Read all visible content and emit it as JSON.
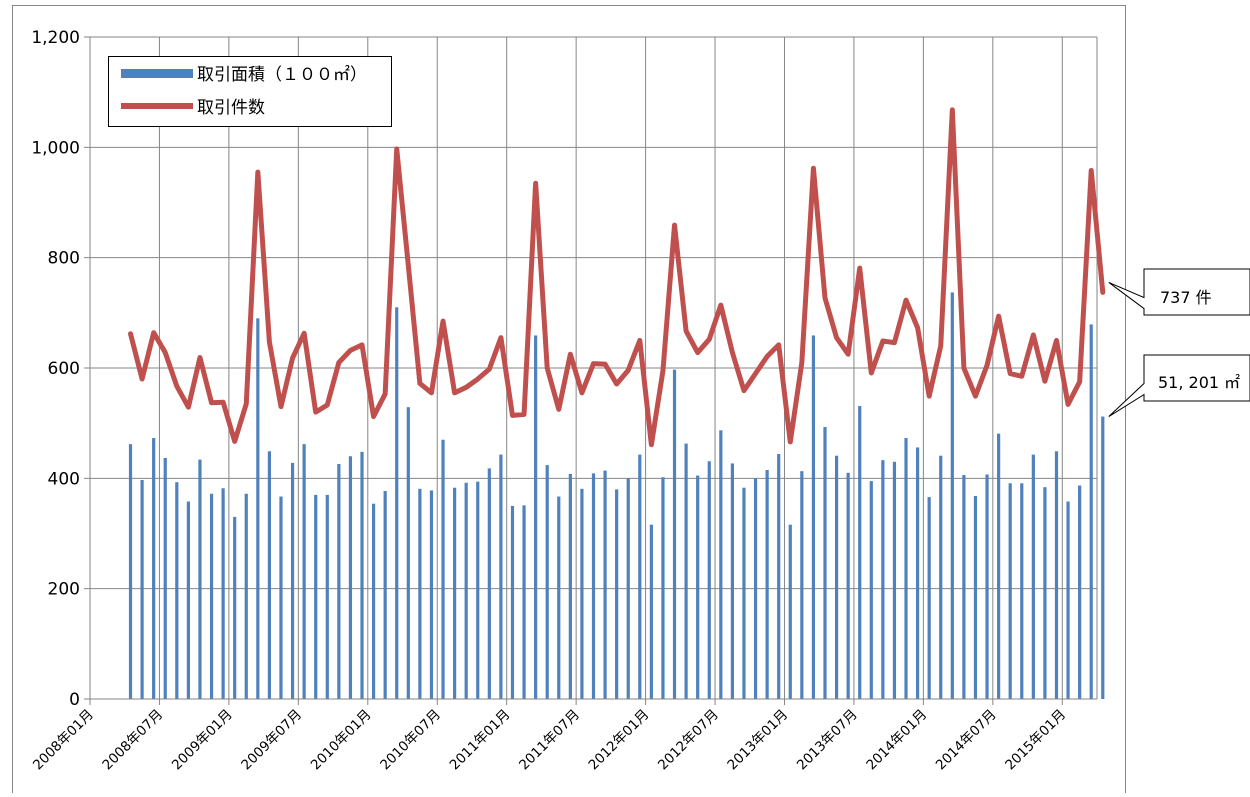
{
  "chart_data": {
    "type": "bar",
    "title": "",
    "xlabel": "",
    "ylabel": "",
    "ylim": [
      0,
      1200
    ],
    "yticks": [
      0,
      200,
      400,
      600,
      800,
      1000,
      1200
    ],
    "ytick_labels": [
      "0",
      "200",
      "400",
      "600",
      "800",
      "1,000",
      "1,200"
    ],
    "grid": true,
    "legend_position": "top-left",
    "x_tick_labels": [
      "2008年01月",
      "2008年07月",
      "2009年01月",
      "2009年07月",
      "2010年01月",
      "2010年07月",
      "2011年01月",
      "2011年07月",
      "2012年01月",
      "2012年07月",
      "2013年01月",
      "2013年07月",
      "2014年01月",
      "2014年07月",
      "2015年01月"
    ],
    "x": [
      "2008-04",
      "2008-05",
      "2008-06",
      "2008-07",
      "2008-08",
      "2008-09",
      "2008-10",
      "2008-11",
      "2008-12",
      "2009-01",
      "2009-02",
      "2009-03",
      "2009-04",
      "2009-05",
      "2009-06",
      "2009-07",
      "2009-08",
      "2009-09",
      "2009-10",
      "2009-11",
      "2009-12",
      "2010-01",
      "2010-02",
      "2010-03",
      "2010-04",
      "2010-05",
      "2010-06",
      "2010-07",
      "2010-08",
      "2010-09",
      "2010-10",
      "2010-11",
      "2010-12",
      "2011-01",
      "2011-02",
      "2011-03",
      "2011-04",
      "2011-05",
      "2011-06",
      "2011-07",
      "2011-08",
      "2011-09",
      "2011-10",
      "2011-11",
      "2011-12",
      "2012-01",
      "2012-02",
      "2012-03",
      "2012-04",
      "2012-05",
      "2012-06",
      "2012-07",
      "2012-08",
      "2012-09",
      "2012-10",
      "2012-11",
      "2012-12",
      "2013-01",
      "2013-02",
      "2013-03",
      "2013-04",
      "2013-05",
      "2013-06",
      "2013-07",
      "2013-08",
      "2013-09",
      "2013-10",
      "2013-11",
      "2013-12",
      "2014-01",
      "2014-02",
      "2014-03",
      "2014-04",
      "2014-05",
      "2014-06",
      "2014-07",
      "2014-08",
      "2014-09",
      "2014-10",
      "2014-11",
      "2014-12",
      "2015-01",
      "2015-02",
      "2015-03",
      "2015-04"
    ],
    "series": [
      {
        "name": "取引面積（１００㎡）",
        "type": "bar",
        "color": "#4f81bd",
        "values": [
          462,
          397,
          473,
          437,
          393,
          358,
          434,
          372,
          382,
          330,
          372,
          690,
          449,
          367,
          428,
          462,
          370,
          370,
          426,
          440,
          448,
          354,
          377,
          710,
          529,
          381,
          378,
          470,
          383,
          392,
          394,
          418,
          443,
          350,
          351,
          659,
          424,
          367,
          408,
          381,
          409,
          414,
          380,
          400,
          443,
          316,
          402,
          597,
          463,
          405,
          431,
          487,
          427,
          383,
          400,
          415,
          444,
          316,
          413,
          659,
          493,
          441,
          410,
          531,
          395,
          433,
          430,
          473,
          456,
          366,
          441,
          737,
          406,
          368,
          407,
          481,
          391,
          391,
          443,
          384,
          449,
          358,
          387,
          679,
          512
        ]
      },
      {
        "name": "取引件数",
        "type": "line",
        "color": "#c0504d",
        "values": [
          662,
          580,
          664,
          628,
          567,
          529,
          619,
          537,
          538,
          467,
          535,
          955,
          647,
          530,
          618,
          663,
          520,
          533,
          610,
          632,
          642,
          512,
          553,
          997,
          786,
          572,
          555,
          685,
          555,
          565,
          580,
          598,
          655,
          514,
          516,
          935,
          600,
          525,
          625,
          555,
          608,
          607,
          571,
          596,
          650,
          461,
          595,
          859,
          667,
          628,
          652,
          714,
          628,
          559,
          590,
          621,
          642,
          466,
          610,
          962,
          727,
          655,
          625,
          781,
          591,
          649,
          646,
          723,
          673,
          549,
          640,
          1068,
          600,
          549,
          605,
          694,
          590,
          585,
          660,
          576,
          650,
          534,
          575,
          958,
          737
        ]
      }
    ],
    "callouts": [
      {
        "target": "line-last",
        "text": "737 件"
      },
      {
        "target": "bar-last",
        "text": "51, 201 ㎡"
      }
    ]
  }
}
